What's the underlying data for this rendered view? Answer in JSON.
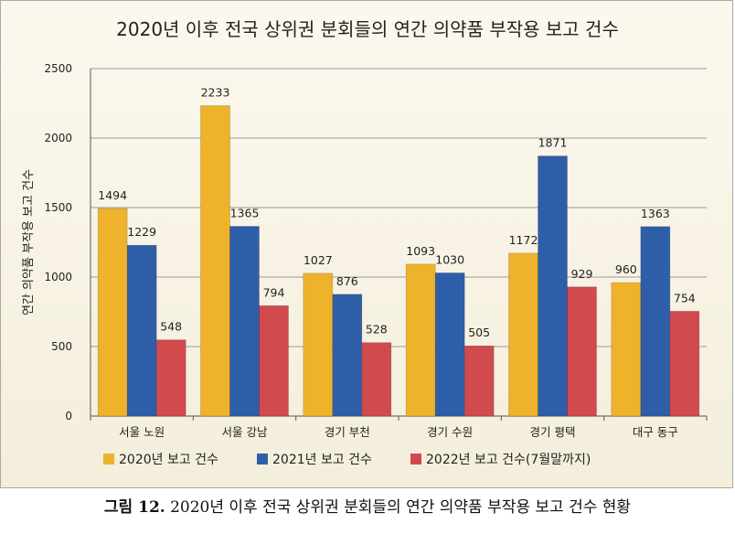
{
  "chart_data": {
    "type": "bar",
    "title": "2020년 이후 전국 상위권 분회들의 연간 의약품 부작용 보고 건수",
    "xlabel": "",
    "ylabel": "연간 의약품 부작용 보고 건수",
    "ylim": [
      0,
      2500
    ],
    "yticks": [
      0,
      500,
      1000,
      1500,
      2000,
      2500
    ],
    "grid": true,
    "legend_position": "bottom",
    "categories": [
      "서울 노원",
      "서울 강남",
      "경기 부천",
      "경기 수원",
      "경기 평택",
      "대구 동구"
    ],
    "series": [
      {
        "name": "2020년 보고 건수",
        "color": "#eeb22b",
        "values": [
          1494,
          2233,
          1027,
          1093,
          1172,
          960
        ]
      },
      {
        "name": "2021년 보고 건수",
        "color": "#2f5ea8",
        "values": [
          1229,
          1365,
          876,
          1030,
          1871,
          1363
        ]
      },
      {
        "name": "2022년 보고 건수(7월말까지)",
        "color": "#d04a4e",
        "values": [
          548,
          794,
          528,
          505,
          929,
          754
        ]
      }
    ]
  },
  "caption": {
    "label": "그림 12.",
    "text": "2020년 이후 전국 상위권 분회들의 연간 의약품 부작용 보고 건수 현황"
  }
}
